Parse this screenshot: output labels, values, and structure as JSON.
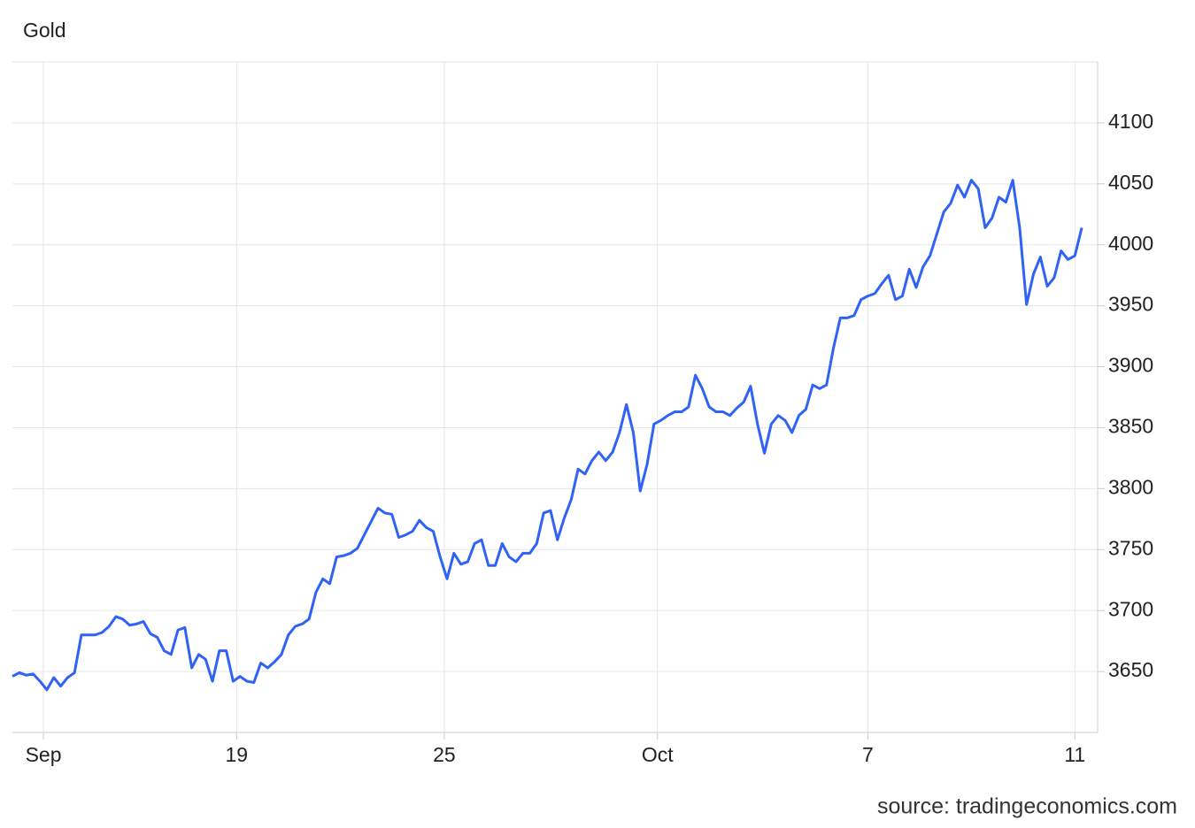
{
  "chart_data": {
    "type": "line",
    "title": "Gold",
    "source": "source: tradingeconomics.com",
    "series": [
      {
        "name": "Gold",
        "color": "#2f62f5",
        "values": [
          3646,
          3649,
          3647,
          3648,
          3642,
          3635,
          3645,
          3638,
          3645,
          3649,
          3680,
          3680,
          3680,
          3682,
          3687,
          3695,
          3693,
          3688,
          3689,
          3691,
          3681,
          3678,
          3667,
          3664,
          3684,
          3686,
          3653,
          3664,
          3660,
          3642,
          3667,
          3667,
          3642,
          3646,
          3642,
          3641,
          3657,
          3653,
          3658,
          3664,
          3680,
          3687,
          3689,
          3693,
          3715,
          3726,
          3722,
          3744,
          3745,
          3747,
          3751,
          3762,
          3773,
          3784,
          3780,
          3779,
          3760,
          3762,
          3765,
          3774,
          3768,
          3765,
          3744,
          3726,
          3747,
          3738,
          3740,
          3755,
          3758,
          3737,
          3737,
          3755,
          3744,
          3740,
          3747,
          3747,
          3755,
          3780,
          3782,
          3758,
          3776,
          3791,
          3816,
          3812,
          3823,
          3830,
          3823,
          3830,
          3846,
          3869,
          3846,
          3798,
          3820,
          3853,
          3856,
          3860,
          3863,
          3863,
          3867,
          3893,
          3882,
          3867,
          3863,
          3863,
          3860,
          3866,
          3871,
          3884,
          3853,
          3829,
          3853,
          3860,
          3856,
          3846,
          3860,
          3865,
          3885,
          3882,
          3885,
          3915,
          3940,
          3940,
          3942,
          3955,
          3958,
          3960,
          3968,
          3975,
          3955,
          3958,
          3980,
          3965,
          3982,
          3991,
          4009,
          4027,
          4034,
          4049,
          4039,
          4053,
          4046,
          4014,
          4022,
          4039,
          4035,
          4053,
          4014,
          3951,
          3976,
          3990,
          3966,
          3973,
          3995,
          3988,
          3991,
          4014
        ]
      }
    ],
    "xlim": [
      0,
      157.3
    ],
    "xticks": [
      {
        "value": 4.5,
        "label": "Sep"
      },
      {
        "value": 32.5,
        "label": "19"
      },
      {
        "value": 62.6,
        "label": "25"
      },
      {
        "value": 93.5,
        "label": "Oct"
      },
      {
        "value": 124,
        "label": "7"
      },
      {
        "value": 154,
        "label": "11"
      }
    ],
    "ylim": [
      3600,
      4150
    ],
    "yticks": [
      3650,
      3700,
      3750,
      3800,
      3850,
      3900,
      3950,
      4000,
      4050,
      4100
    ],
    "grid": true
  }
}
